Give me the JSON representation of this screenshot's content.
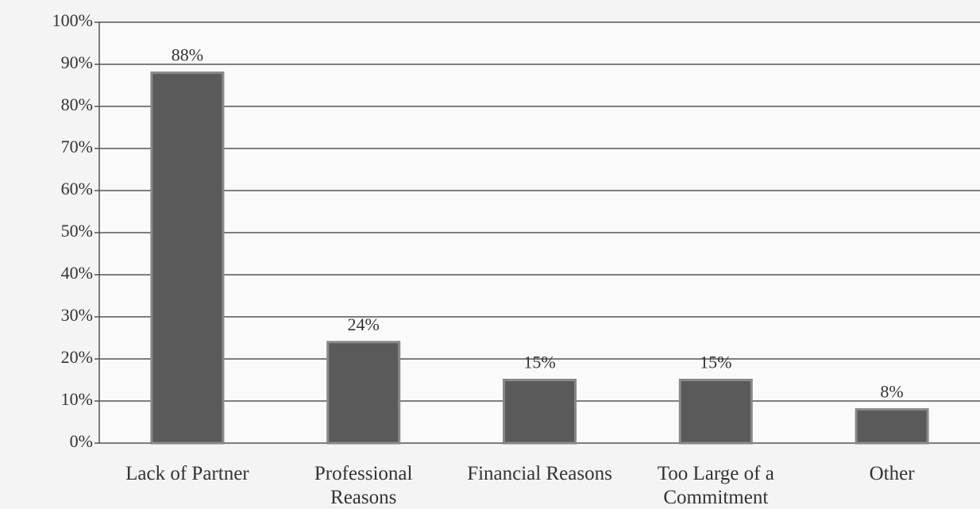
{
  "chart_data": {
    "type": "bar",
    "categories": [
      "Lack of Partner",
      "Professional Reasons",
      "Financial Reasons",
      "Too Large of a Commitment",
      "Other"
    ],
    "values": [
      88,
      24,
      15,
      15,
      8
    ],
    "value_labels": [
      "88%",
      "24%",
      "15%",
      "15%",
      "8%"
    ],
    "color": "#5a5a5a",
    "ylim": [
      0,
      100
    ],
    "yticks": [
      {
        "value": 0,
        "label": "0%"
      },
      {
        "value": 10,
        "label": "10%"
      },
      {
        "value": 20,
        "label": "20%"
      },
      {
        "value": 30,
        "label": "30%"
      },
      {
        "value": 40,
        "label": "40%"
      },
      {
        "value": 50,
        "label": "50%"
      },
      {
        "value": 60,
        "label": "60%"
      },
      {
        "value": 70,
        "label": "70%"
      },
      {
        "value": 80,
        "label": "80%"
      },
      {
        "value": 90,
        "label": "90%"
      },
      {
        "value": 100,
        "label": "100%"
      }
    ],
    "grid": true
  }
}
